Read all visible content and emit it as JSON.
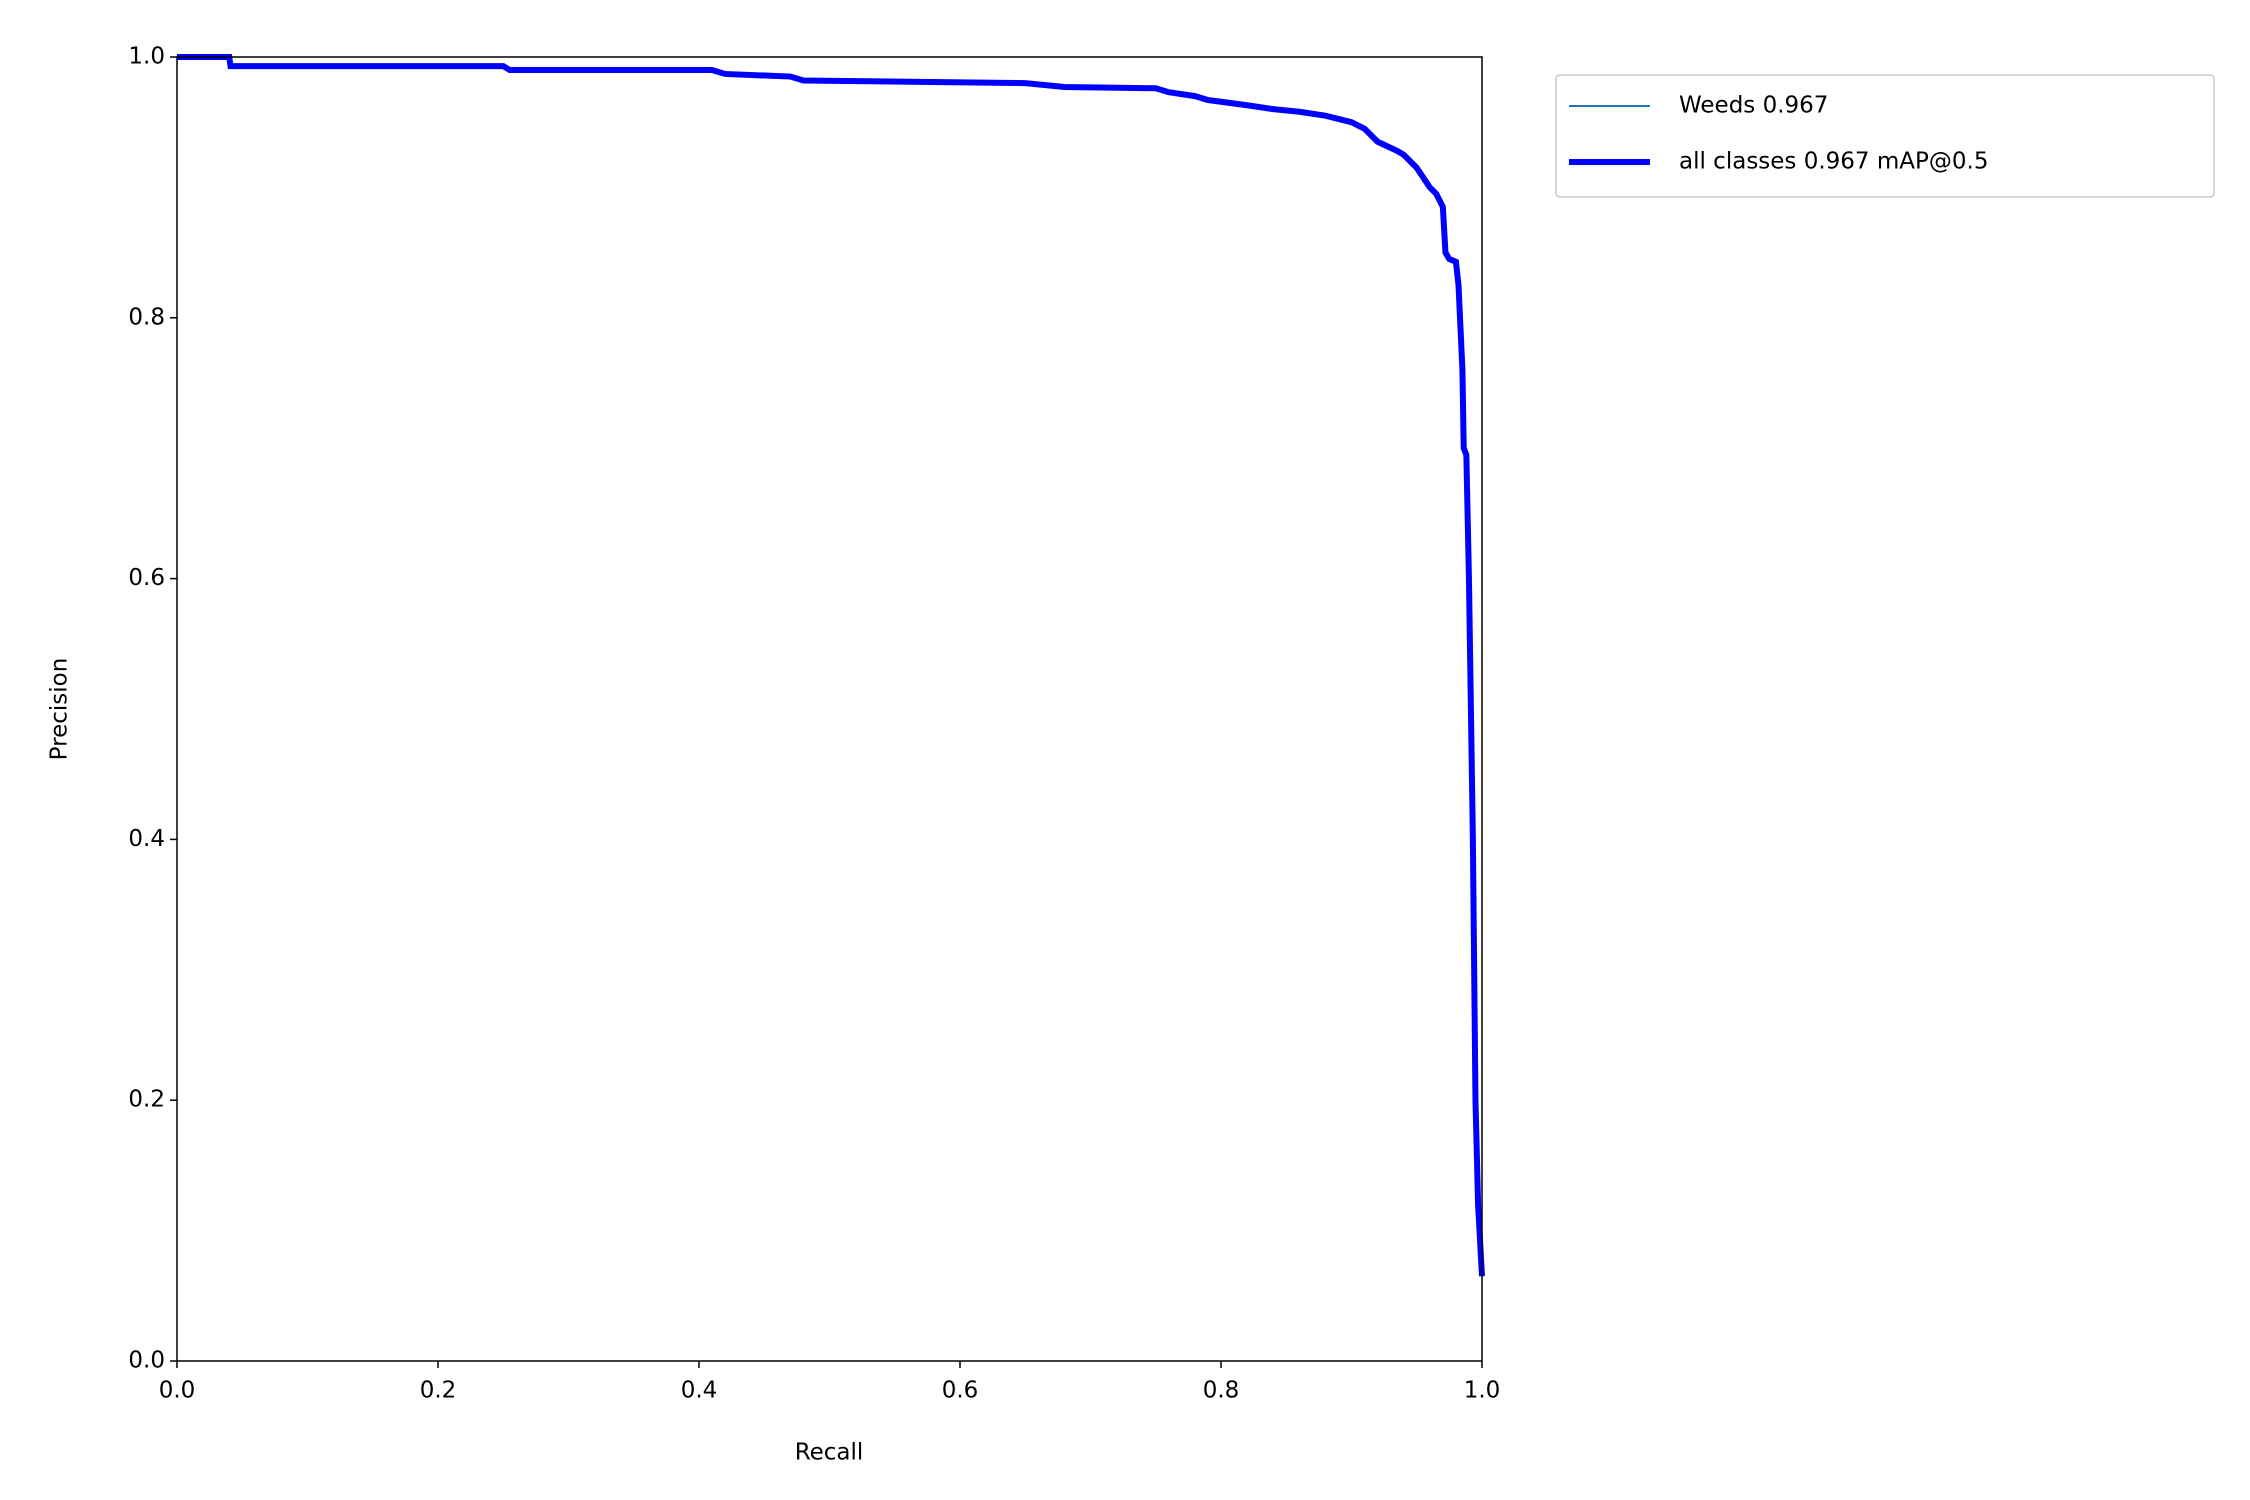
{
  "chart_data": {
    "type": "line",
    "xlabel": "Recall",
    "ylabel": "Precision",
    "xlim": [
      0,
      1
    ],
    "ylim": [
      0,
      1
    ],
    "xticks": [
      {
        "value": 0,
        "label": "0.0"
      },
      0.2,
      0.4,
      0.6,
      0.8,
      {
        "value": 1,
        "label": "1.0"
      }
    ],
    "yticks": [
      {
        "value": 0,
        "label": "0.0"
      },
      0.2,
      0.4,
      0.6,
      0.8,
      {
        "value": 1,
        "label": "1.0"
      }
    ],
    "x": [
      0,
      0.04,
      0.041,
      0.25,
      0.255,
      0.41,
      0.42,
      0.47,
      0.48,
      0.65,
      0.68,
      0.75,
      0.76,
      0.78,
      0.79,
      0.82,
      0.84,
      0.86,
      0.88,
      0.9,
      0.91,
      0.92,
      0.935,
      0.94,
      0.95,
      0.96,
      0.965,
      0.97,
      0.972,
      0.975,
      0.98,
      0.982,
      0.985,
      0.986,
      0.988,
      0.99,
      0.993,
      0.995,
      0.997,
      1.0
    ],
    "series": [
      {
        "name": "Weeds 0.967",
        "color": "#1f77b4",
        "linewidth": 1,
        "values": [
          1,
          1,
          0.993,
          0.993,
          0.99,
          0.99,
          0.987,
          0.985,
          0.982,
          0.98,
          0.977,
          0.976,
          0.973,
          0.97,
          0.967,
          0.963,
          0.96,
          0.958,
          0.955,
          0.95,
          0.945,
          0.935,
          0.928,
          0.925,
          0.915,
          0.9,
          0.895,
          0.885,
          0.85,
          0.845,
          0.843,
          0.825,
          0.76,
          0.7,
          0.695,
          0.6,
          0.4,
          0.2,
          0.12,
          0.065
        ]
      },
      {
        "name": "all classes 0.967 mAP@0.5",
        "color": "#0000ff",
        "linewidth": 3,
        "values": [
          1,
          1,
          0.993,
          0.993,
          0.99,
          0.99,
          0.987,
          0.985,
          0.982,
          0.98,
          0.977,
          0.976,
          0.973,
          0.97,
          0.967,
          0.963,
          0.96,
          0.958,
          0.955,
          0.95,
          0.945,
          0.935,
          0.928,
          0.925,
          0.915,
          0.9,
          0.895,
          0.885,
          0.85,
          0.845,
          0.843,
          0.825,
          0.76,
          0.7,
          0.695,
          0.6,
          0.4,
          0.2,
          0.12,
          0.065
        ]
      }
    ]
  }
}
